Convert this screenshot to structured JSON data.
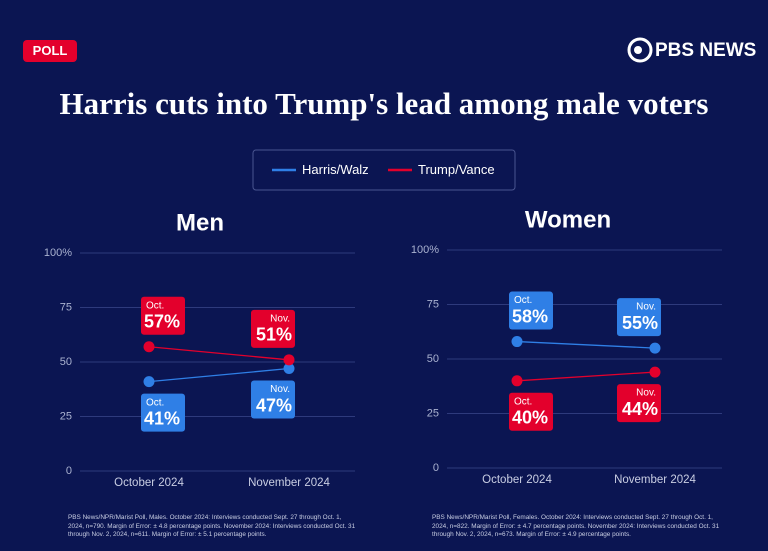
{
  "badge": "POLL",
  "brand": "PBS NEWS",
  "title": "Harris cuts into Trump's lead among male voters",
  "chart_data": [
    {
      "type": "line",
      "title": "Men",
      "categories": [
        "October 2024",
        "November 2024"
      ],
      "point_labels": [
        "Oct.",
        "Nov."
      ],
      "series": [
        {
          "name": "Harris/Walz",
          "color": "#2f7fe6",
          "values": [
            41,
            47
          ],
          "value_labels": [
            "41%",
            "47%"
          ]
        },
        {
          "name": "Trump/Vance",
          "color": "#e3002c",
          "values": [
            57,
            51
          ],
          "value_labels": [
            "57%",
            "51%"
          ]
        }
      ],
      "ylim": [
        0,
        100
      ],
      "yticks": [
        0,
        25,
        50,
        75,
        {
          "value": 100,
          "label": "100%"
        }
      ],
      "grid": true,
      "note": "PBS News/NPR/Marist Poll, Males. October 2024: Interviews conducted Sept. 27 through Oct. 1, 2024, n=790. Margin of Error: ± 4.8 percentage points. November 2024: Interviews conducted Oct. 31 through Nov. 2, 2024, n=611. Margin of Error: ± 5.1 percentage points."
    },
    {
      "type": "line",
      "title": "Women",
      "categories": [
        "October 2024",
        "November 2024"
      ],
      "point_labels": [
        "Oct.",
        "Nov."
      ],
      "series": [
        {
          "name": "Harris/Walz",
          "color": "#2f7fe6",
          "values": [
            58,
            55
          ],
          "value_labels": [
            "58%",
            "55%"
          ]
        },
        {
          "name": "Trump/Vance",
          "color": "#e3002c",
          "values": [
            40,
            44
          ],
          "value_labels": [
            "40%",
            "44%"
          ]
        }
      ],
      "ylim": [
        0,
        100
      ],
      "yticks": [
        0,
        25,
        50,
        75,
        {
          "value": 100,
          "label": "100%"
        }
      ],
      "grid": true,
      "note": "PBS News/NPR/Marist Poll, Females. October 2024: Interviews conducted Sept. 27 through Oct. 1, 2024, n=822. Margin of Error: ± 4.7 percentage points. November 2024: Interviews conducted Oct. 31 through Nov. 2, 2024, n=673. Margin of Error: ± 4.9 percentage points."
    }
  ]
}
